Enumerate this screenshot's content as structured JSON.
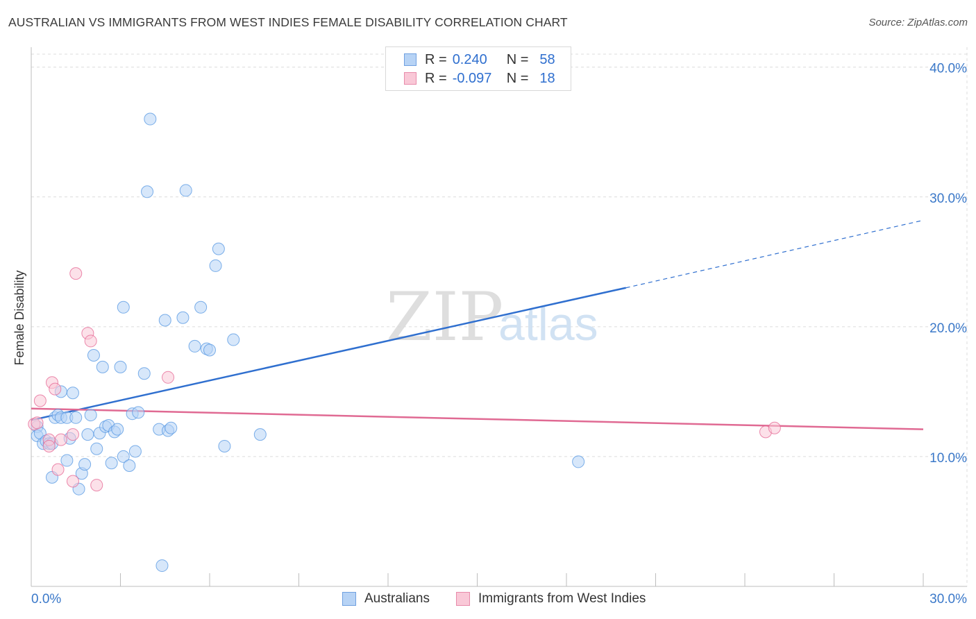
{
  "title": "AUSTRALIAN VS IMMIGRANTS FROM WEST INDIES FEMALE DISABILITY CORRELATION CHART",
  "source": "Source: ZipAtlas.com",
  "watermark": {
    "zip": "ZIP",
    "atlas": "atlas"
  },
  "legend": {
    "r_label": "R =",
    "n_label": "N =",
    "rows": [
      {
        "r": "0.240",
        "n": "58",
        "fill": "#b7d3f5",
        "stroke": "#6fa0e0"
      },
      {
        "r": "-0.097",
        "n": "18",
        "fill": "#f9c8d7",
        "stroke": "#e88aaa"
      }
    ]
  },
  "chart_data": {
    "type": "scatter",
    "title": "AUSTRALIAN VS IMMIGRANTS FROM WEST INDIES FEMALE DISABILITY CORRELATION CHART",
    "xlabel": "",
    "ylabel": "Female Disability",
    "xlim": [
      0,
      30
    ],
    "ylim": [
      0,
      41
    ],
    "x_tick_labels": [
      "0.0%",
      "30.0%"
    ],
    "y_ticks": [
      {
        "value": 40,
        "label": "40.0%"
      },
      {
        "value": 30,
        "label": "30.0%"
      },
      {
        "value": 20,
        "label": "20.0%"
      },
      {
        "value": 10,
        "label": "10.0%"
      }
    ],
    "series": [
      {
        "name": "Australians",
        "color": "#5b9be3",
        "fill": "#b7d3f5",
        "points": [
          [
            0.2,
            12.3
          ],
          [
            0.2,
            11.6
          ],
          [
            0.3,
            11.8
          ],
          [
            0.4,
            11.0
          ],
          [
            0.5,
            11.2
          ],
          [
            0.6,
            11.0
          ],
          [
            0.7,
            11.0
          ],
          [
            0.7,
            8.4
          ],
          [
            0.8,
            13.0
          ],
          [
            0.9,
            13.2
          ],
          [
            1.0,
            13.0
          ],
          [
            1.0,
            15.0
          ],
          [
            1.2,
            13.0
          ],
          [
            1.2,
            9.7
          ],
          [
            1.3,
            11.4
          ],
          [
            1.4,
            14.9
          ],
          [
            1.5,
            13.0
          ],
          [
            1.6,
            7.5
          ],
          [
            1.7,
            8.7
          ],
          [
            1.8,
            9.4
          ],
          [
            1.9,
            11.7
          ],
          [
            2.0,
            13.2
          ],
          [
            2.1,
            17.8
          ],
          [
            2.2,
            10.6
          ],
          [
            2.3,
            11.8
          ],
          [
            2.4,
            16.9
          ],
          [
            2.5,
            12.3
          ],
          [
            2.6,
            12.4
          ],
          [
            2.7,
            9.5
          ],
          [
            2.8,
            11.9
          ],
          [
            2.9,
            12.1
          ],
          [
            3.0,
            16.9
          ],
          [
            3.1,
            10.0
          ],
          [
            3.1,
            21.5
          ],
          [
            3.3,
            9.3
          ],
          [
            3.4,
            13.3
          ],
          [
            3.5,
            10.4
          ],
          [
            3.6,
            13.4
          ],
          [
            3.8,
            16.4
          ],
          [
            3.9,
            30.4
          ],
          [
            4.0,
            36.0
          ],
          [
            4.3,
            12.1
          ],
          [
            4.4,
            1.6
          ],
          [
            4.5,
            20.5
          ],
          [
            4.6,
            12.0
          ],
          [
            4.7,
            12.2
          ],
          [
            5.1,
            20.7
          ],
          [
            5.2,
            30.5
          ],
          [
            5.5,
            18.5
          ],
          [
            5.7,
            21.5
          ],
          [
            5.9,
            18.3
          ],
          [
            6.0,
            18.2
          ],
          [
            6.2,
            24.7
          ],
          [
            6.3,
            26.0
          ],
          [
            6.5,
            10.8
          ],
          [
            6.8,
            19.0
          ],
          [
            7.7,
            11.7
          ],
          [
            18.4,
            9.6
          ]
        ]
      },
      {
        "name": "Immigrants from West Indies",
        "color": "#e66c97",
        "fill": "#f9c8d7",
        "points": [
          [
            0.1,
            12.5
          ],
          [
            0.2,
            12.6
          ],
          [
            0.3,
            14.3
          ],
          [
            0.6,
            11.3
          ],
          [
            0.6,
            10.8
          ],
          [
            0.7,
            15.7
          ],
          [
            0.8,
            15.2
          ],
          [
            0.9,
            9.0
          ],
          [
            1.0,
            11.3
          ],
          [
            1.4,
            8.1
          ],
          [
            1.4,
            11.7
          ],
          [
            1.5,
            24.1
          ],
          [
            1.9,
            19.5
          ],
          [
            2.0,
            18.9
          ],
          [
            2.2,
            7.8
          ],
          [
            4.6,
            16.1
          ],
          [
            24.7,
            11.9
          ],
          [
            25.0,
            12.2
          ]
        ]
      }
    ],
    "trendlines": [
      {
        "series": "Australians",
        "x0": 0.0,
        "y0": 12.8,
        "x1": 20.0,
        "y1": 23.0,
        "dash_to_x": 30.0,
        "dash_to_y": 28.2
      },
      {
        "series": "Immigrants from West Indies",
        "x0": 0.0,
        "y0": 13.7,
        "x1": 30.0,
        "y1": 12.1
      }
    ]
  },
  "bottom_legend": {
    "items": [
      {
        "label": "Australians"
      },
      {
        "label": "Immigrants from West Indies"
      }
    ]
  }
}
